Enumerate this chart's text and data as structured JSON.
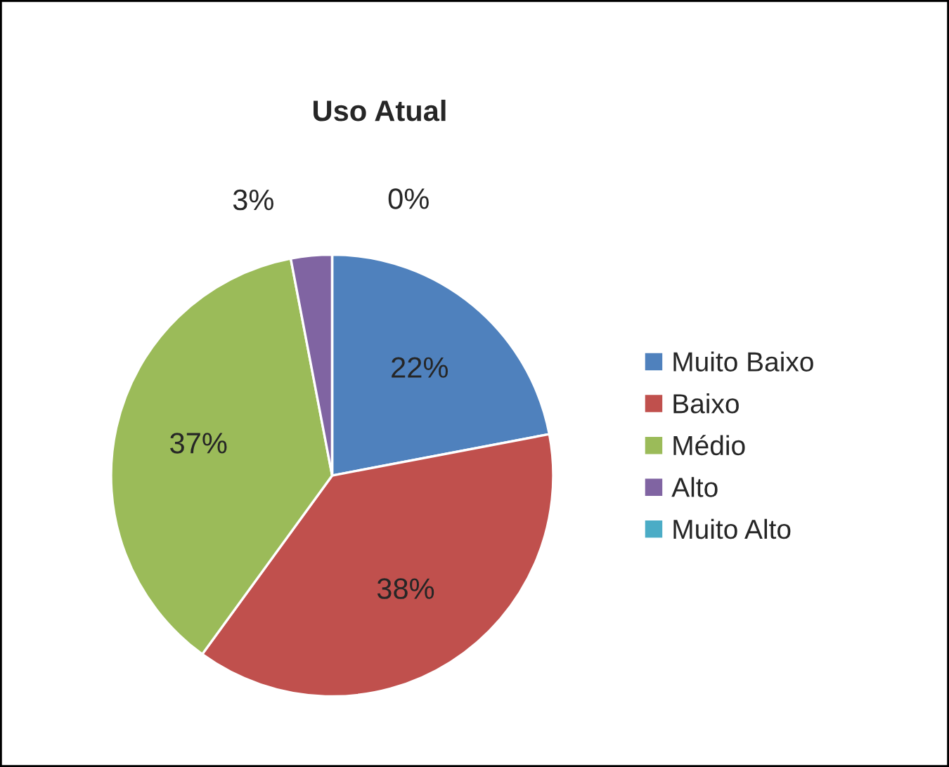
{
  "chart_data": {
    "type": "pie",
    "title": "Uso Atual",
    "categories": [
      "Muito Baixo",
      "Baixo",
      "Médio",
      "Alto",
      "Muito Alto"
    ],
    "values": [
      22,
      38,
      37,
      3,
      0
    ],
    "colors": [
      "#4f81bd",
      "#c0504d",
      "#9bbb59",
      "#8064a2",
      "#4bacc6"
    ],
    "value_labels": [
      "22%",
      "38%",
      "37%",
      "3%",
      "0%"
    ],
    "legend": "right"
  }
}
